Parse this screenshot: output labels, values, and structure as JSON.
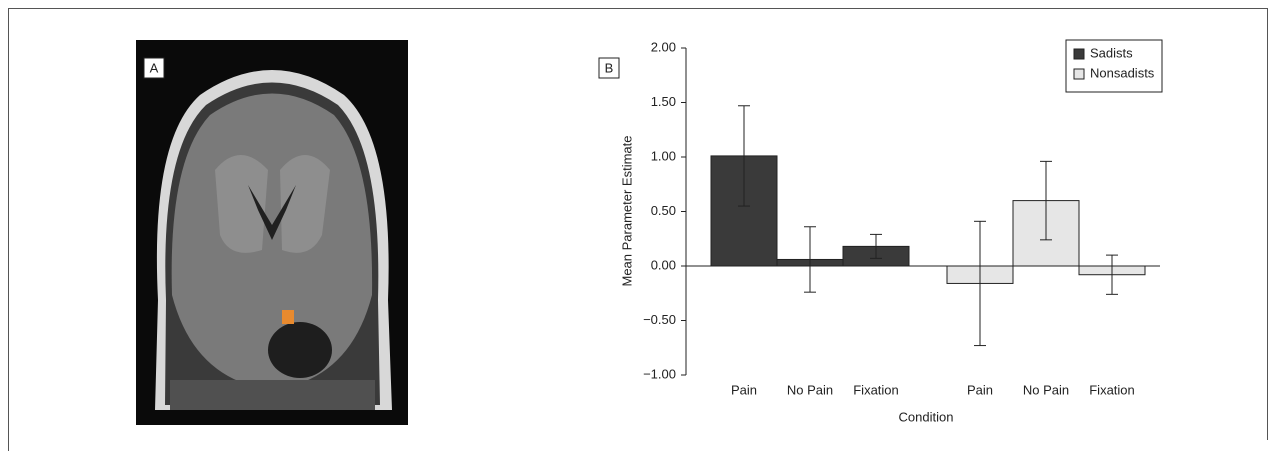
{
  "panel_labels": [
    "A",
    "B"
  ],
  "chart_data": {
    "type": "bar",
    "x_label": "Condition",
    "y_label": "Mean Parameter Estimate",
    "categories": [
      "Pain",
      "No Pain",
      "Fixation",
      "Pain",
      "No Pain",
      "Fixation"
    ],
    "series": [
      {
        "name": "Sadists",
        "color": "#3a3a3a",
        "values": [
          1.01,
          0.06,
          0.18,
          null,
          null,
          null
        ],
        "errors": [
          0.46,
          0.3,
          0.11,
          null,
          null,
          null
        ]
      },
      {
        "name": "Nonsadists",
        "color": "#e6e6e6",
        "values": [
          null,
          null,
          null,
          -0.16,
          0.6,
          -0.08
        ],
        "errors": [
          null,
          null,
          null,
          0.57,
          0.36,
          0.18
        ]
      }
    ],
    "ylim": [
      -1,
      2
    ],
    "yticks": [
      {
        "value": -1,
        "label": "−1.00"
      },
      {
        "value": -0.5,
        "label": "−0.50"
      },
      {
        "value": 0,
        "label": "0.00"
      },
      {
        "value": 0.5,
        "label": "0.50"
      },
      {
        "value": 1,
        "label": "1.00"
      },
      {
        "value": 1.5,
        "label": "1.50"
      },
      {
        "value": 2,
        "label": "2.00"
      }
    ],
    "legend": "upper right"
  }
}
